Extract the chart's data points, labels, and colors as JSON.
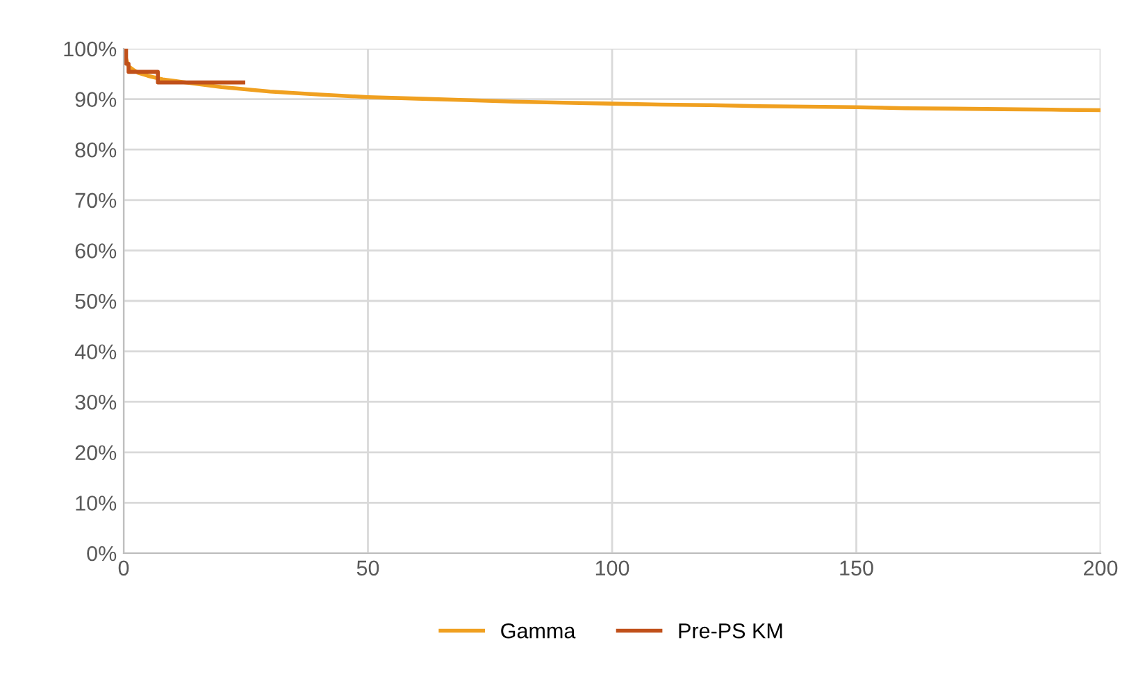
{
  "chart_data": {
    "type": "line",
    "series": [
      {
        "name": "Gamma",
        "color": "#f0a020",
        "x": [
          0,
          0.5,
          1,
          2,
          3,
          5,
          8,
          12,
          15,
          20,
          30,
          40,
          50,
          60,
          70,
          80,
          90,
          100,
          110,
          120,
          130,
          140,
          150,
          160,
          170,
          180,
          190,
          200
        ],
        "values": [
          100,
          98,
          96.5,
          95.8,
          95.2,
          94.6,
          93.9,
          93.4,
          93.0,
          92.4,
          91.5,
          90.9,
          90.4,
          90.1,
          89.8,
          89.5,
          89.3,
          89.1,
          88.9,
          88.8,
          88.6,
          88.5,
          88.4,
          88.2,
          88.1,
          88.0,
          87.9,
          87.8
        ]
      },
      {
        "name": "Pre-PS KM",
        "color": "#c0501a",
        "type": "step",
        "x": [
          0,
          0.5,
          1,
          7,
          24.5
        ],
        "values": [
          100,
          97,
          95.4,
          93.3,
          93.3
        ]
      }
    ],
    "xlim": [
      0,
      200
    ],
    "xticks": [
      0,
      50,
      100,
      150,
      200
    ],
    "ylim": [
      0,
      100
    ],
    "yticks": [
      {
        "value": 0,
        "label": "0%"
      },
      {
        "value": 10,
        "label": "10%"
      },
      {
        "value": 20,
        "label": "20%"
      },
      {
        "value": 30,
        "label": "30%"
      },
      {
        "value": 40,
        "label": "40%"
      },
      {
        "value": 50,
        "label": "50%"
      },
      {
        "value": 60,
        "label": "60%"
      },
      {
        "value": 70,
        "label": "70%"
      },
      {
        "value": 80,
        "label": "80%"
      },
      {
        "value": 90,
        "label": "90%"
      },
      {
        "value": 100,
        "label": "100%"
      }
    ],
    "grid": true,
    "legend": "bottom"
  }
}
